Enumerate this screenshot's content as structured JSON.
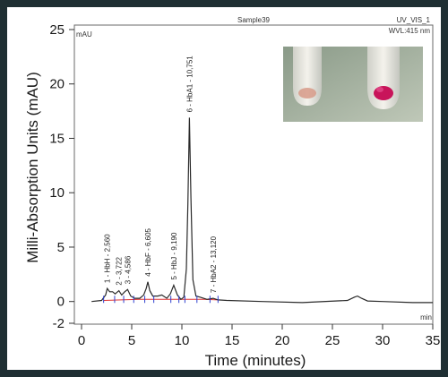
{
  "chart_data": {
    "type": "line",
    "title": "Sample39",
    "xlabel": "Time (minutes)",
    "ylabel": "Milli-Absorption Units (mAU)",
    "corner_labels": {
      "y_unit": "mAU",
      "channel": "UV_VIS_1",
      "wavelength": "WVL:415 nm",
      "x_unit": "min"
    },
    "xlim": [
      0,
      35
    ],
    "ylim": [
      -2,
      25
    ],
    "x_ticks": [
      "0",
      "5",
      "10",
      "15",
      "20",
      "25",
      "30",
      "35"
    ],
    "y_ticks": [
      "-2",
      "0",
      "5",
      "10",
      "15",
      "20",
      "25"
    ],
    "series": [
      {
        "x": [
          1.0,
          2.0,
          2.4,
          2.56,
          2.8,
          3.1,
          3.35,
          3.72,
          4.0,
          4.3,
          4.586,
          4.9,
          5.3,
          5.8,
          6.2,
          6.45,
          6.605,
          6.8,
          7.1,
          7.6,
          8.0,
          8.5,
          8.85,
          9.19,
          9.55,
          9.9,
          10.2,
          10.45,
          10.6,
          10.751,
          10.9,
          11.1,
          11.4,
          11.8,
          12.5,
          13.12,
          13.6,
          14.5,
          18.0,
          22.0,
          26.5,
          27.2,
          27.5,
          27.9,
          28.5,
          30.0,
          33.0,
          35.0
        ],
        "y": [
          0,
          0.1,
          0.6,
          1.2,
          0.9,
          0.9,
          0.7,
          1.0,
          0.6,
          0.9,
          1.1,
          0.5,
          0.3,
          0.3,
          0.6,
          1.2,
          1.8,
          1.0,
          0.5,
          0.5,
          0.6,
          0.3,
          0.7,
          1.5,
          0.6,
          0.2,
          0.4,
          3.0,
          9.0,
          16.9,
          9.5,
          2.0,
          0.5,
          0.4,
          0.2,
          0.3,
          0.15,
          0.1,
          0.0,
          -0.1,
          0.1,
          0.4,
          0.5,
          0.3,
          0.05,
          0.0,
          -0.1,
          -0.1
        ]
      }
    ],
    "peaks": [
      {
        "label": "1 - HbH - 2,560",
        "x": 2.56,
        "y": 1.2
      },
      {
        "label": "2 - 3,722",
        "x": 3.72,
        "y": 1.0
      },
      {
        "label": "3 - 4,586",
        "x": 4.586,
        "y": 1.1
      },
      {
        "label": "4 - HbF - 6,605",
        "x": 6.605,
        "y": 1.8
      },
      {
        "label": "5 - HbJ - 9,190",
        "x": 9.19,
        "y": 1.5
      },
      {
        "label": "6 - HbA1 - 10,751",
        "x": 10.751,
        "y": 16.9
      },
      {
        "label": "7 - HbA2 - 13,120",
        "x": 13.12,
        "y": 0.3
      }
    ],
    "line_color": "#2a2a2a",
    "baseline_color": "#e03030",
    "marker_color": "#3040d0"
  }
}
